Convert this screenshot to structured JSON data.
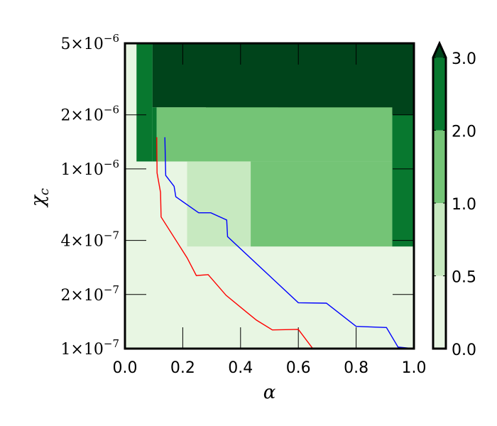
{
  "chart_data": {
    "type": "heatmap",
    "xlabel": "α",
    "ylabel": {
      "main": "χ",
      "sub": "c"
    },
    "xlim": [
      0.0,
      1.0
    ],
    "ylim": [
      1e-07,
      5e-06
    ],
    "yscale": "log",
    "xticks": [
      {
        "value": 0.0,
        "label": "0.0"
      },
      {
        "value": 0.2,
        "label": "0.2"
      },
      {
        "value": 0.4,
        "label": "0.4"
      },
      {
        "value": 0.6,
        "label": "0.6"
      },
      {
        "value": 0.8,
        "label": "0.8"
      },
      {
        "value": 1.0,
        "label": "1.0"
      }
    ],
    "yticks": [
      {
        "value": 1e-07,
        "mant": "1",
        "exp": "−7"
      },
      {
        "value": 2e-07,
        "mant": "2",
        "exp": "−7"
      },
      {
        "value": 4e-07,
        "mant": "4",
        "exp": "−7"
      },
      {
        "value": 1e-06,
        "mant": "1",
        "exp": "−6"
      },
      {
        "value": 2e-06,
        "mant": "2",
        "exp": "−6"
      },
      {
        "value": 5e-06,
        "mant": "5",
        "exp": "−6"
      }
    ],
    "colorbar": {
      "levels": [
        0.0,
        0.5,
        1.0,
        2.0,
        3.0
      ],
      "labels": [
        "0.0",
        "0.5",
        "1.0",
        "2.0",
        "3.0"
      ],
      "colors": [
        "#e8f6e3",
        "#c7e9c0",
        "#74c476",
        "#08782f",
        "#00441b"
      ],
      "extend": "max"
    },
    "regions": [
      {
        "level": 3,
        "x0": 0.095,
        "x1": 1.0,
        "y0": 2.2e-06,
        "y1": 5e-06
      },
      {
        "level": 3,
        "x0": 0.28,
        "x1": 1.0,
        "y0": 2e-06,
        "y1": 2.3e-06
      },
      {
        "level": 2,
        "x0": 0.04,
        "x1": 0.095,
        "y0": 1.1e-06,
        "y1": 5e-06
      },
      {
        "level": 2,
        "x0": 0.095,
        "x1": 0.11,
        "y0": 1.1e-06,
        "y1": 2.2e-06
      },
      {
        "level": 2,
        "x0": 0.28,
        "x1": 0.53,
        "y0": 1.95e-06,
        "y1": 2.2e-06
      },
      {
        "level": 2,
        "x0": 0.925,
        "x1": 1.0,
        "y0": 3.7e-07,
        "y1": 2e-06
      },
      {
        "level": 1,
        "x0": 0.11,
        "x1": 0.925,
        "y0": 1.1e-06,
        "y1": 2.2e-06
      },
      {
        "level": 1,
        "x0": 0.435,
        "x1": 0.925,
        "y0": 3.7e-07,
        "y1": 1.1e-06
      },
      {
        "level": 0,
        "x0": 0.215,
        "x1": 0.435,
        "y0": 3.7e-07,
        "y1": 1.1e-06
      }
    ],
    "series": [
      {
        "color": "#0000ff",
        "points": [
          [
            0.138,
            1.5e-06
          ],
          [
            0.141,
            9.2e-07
          ],
          [
            0.17,
            8e-07
          ],
          [
            0.176,
            7e-07
          ],
          [
            0.255,
            5.7e-07
          ],
          [
            0.297,
            5.7e-07
          ],
          [
            0.352,
            5.2e-07
          ],
          [
            0.355,
            4.2e-07
          ],
          [
            0.6,
            1.8e-07
          ],
          [
            0.697,
            1.79e-07
          ],
          [
            0.8,
            1.33e-07
          ],
          [
            0.905,
            1.31e-07
          ],
          [
            0.945,
            1.02e-07
          ],
          [
            1.0,
            1e-07
          ]
        ]
      },
      {
        "color": "#ff0000",
        "points": [
          [
            0.11,
            1.5e-06
          ],
          [
            0.111,
            9.5e-07
          ],
          [
            0.123,
            7.4e-07
          ],
          [
            0.125,
            5.4e-07
          ],
          [
            0.215,
            3.2e-07
          ],
          [
            0.247,
            2.55e-07
          ],
          [
            0.288,
            2.58e-07
          ],
          [
            0.35,
            1.98e-07
          ],
          [
            0.42,
            1.6e-07
          ],
          [
            0.455,
            1.44e-07
          ],
          [
            0.51,
            1.27e-07
          ],
          [
            0.6,
            1.28e-07
          ],
          [
            0.65,
            1e-07
          ],
          [
            1.0,
            1e-07
          ]
        ]
      }
    ]
  }
}
